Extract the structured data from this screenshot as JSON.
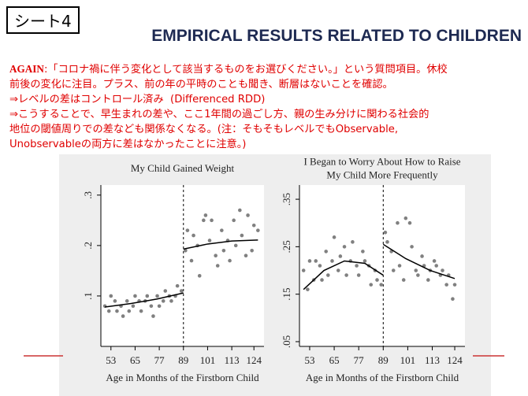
{
  "slide": {
    "badge": "シート4",
    "heading": "EMPIRICAL RESULTS RELATED TO CHILDREN",
    "lead": "AGAIN",
    "lines": [
      ":「コロナ禍に伴う変化として該当するものをお選びください。」という質問項目。休校",
      "前後の変化に注目。プラス、前の年の平時のことも聞き、断層はないことを確認。",
      "⇒レベルの差はコントロール済み  (Differenced RDD)",
      "⇒こうすることで、早生まれの差や、ここ1年間の過ごし方、親の生み分けに関わる社会的",
      "地位の閾値周りでの差なども関係なくなる。(注：そもそもレベルでもObservable,",
      "Unobservableの両方に差はなかったことに注意。)"
    ]
  },
  "chart_data": [
    {
      "type": "scatter",
      "title": [
        "My Child Gained Weight"
      ],
      "x_label": "Age in Months of the Firstborn Child",
      "xlim": [
        48,
        129
      ],
      "ylim": [
        0,
        0.32
      ],
      "xticks": [
        53,
        65,
        77,
        89,
        101,
        113,
        124
      ],
      "yticks": [
        {
          "value": 0.1,
          "label": ".1"
        },
        {
          "value": 0.2,
          "label": ".2"
        },
        {
          "value": 0.3,
          "label": ".3"
        }
      ],
      "cutoff": 89,
      "series": [
        {
          "mode": "markers",
          "color": "#808080",
          "x": [
            50,
            52,
            53,
            55,
            56,
            58,
            59,
            61,
            62,
            64,
            65,
            67,
            68,
            70,
            71,
            73,
            74,
            76,
            77,
            79,
            80,
            82,
            83,
            85,
            86,
            88,
            90,
            91,
            93,
            94,
            96,
            97,
            99,
            100,
            102,
            103,
            105,
            106,
            108,
            109,
            111,
            112,
            114,
            115,
            117,
            118,
            120,
            121,
            123,
            124,
            126
          ],
          "values": [
            0.08,
            0.07,
            0.1,
            0.09,
            0.07,
            0.08,
            0.06,
            0.09,
            0.07,
            0.08,
            0.1,
            0.09,
            0.07,
            0.09,
            0.1,
            0.08,
            0.06,
            0.1,
            0.08,
            0.09,
            0.11,
            0.1,
            0.09,
            0.1,
            0.12,
            0.11,
            0.19,
            0.23,
            0.17,
            0.22,
            0.2,
            0.14,
            0.25,
            0.26,
            0.21,
            0.25,
            0.18,
            0.16,
            0.23,
            0.19,
            0.21,
            0.17,
            0.25,
            0.2,
            0.27,
            0.22,
            0.18,
            0.26,
            0.19,
            0.24,
            0.23
          ]
        },
        {
          "mode": "line",
          "color": "#000000",
          "x": [
            50,
            63,
            76,
            89
          ],
          "values": [
            0.078,
            0.085,
            0.094,
            0.106
          ]
        },
        {
          "mode": "line",
          "color": "#000000",
          "x": [
            89,
            101,
            113,
            126
          ],
          "values": [
            0.193,
            0.203,
            0.209,
            0.211
          ]
        }
      ]
    },
    {
      "type": "scatter",
      "title": [
        "I Began to Worry About How to Raise",
        "My Child More Frequently"
      ],
      "x_label": "Age in Months of the Firstborn Child",
      "xlim": [
        48,
        129
      ],
      "ylim": [
        0.04,
        0.38
      ],
      "xticks": [
        53,
        65,
        77,
        89,
        101,
        113,
        124
      ],
      "yticks": [
        {
          "value": 0.05,
          "label": ".05"
        },
        {
          "value": 0.15,
          "label": ".15"
        },
        {
          "value": 0.25,
          "label": ".25"
        },
        {
          "value": 0.35,
          "label": ".35"
        }
      ],
      "cutoff": 89,
      "series": [
        {
          "mode": "markers",
          "color": "#808080",
          "x": [
            50,
            52,
            53,
            55,
            56,
            58,
            59,
            61,
            62,
            64,
            65,
            67,
            68,
            70,
            71,
            73,
            74,
            76,
            77,
            79,
            80,
            82,
            83,
            85,
            86,
            88,
            90,
            91,
            93,
            94,
            96,
            97,
            99,
            100,
            102,
            103,
            105,
            106,
            108,
            109,
            111,
            112,
            114,
            115,
            117,
            118,
            120,
            121,
            123,
            124
          ],
          "values": [
            0.2,
            0.16,
            0.22,
            0.18,
            0.22,
            0.21,
            0.18,
            0.24,
            0.19,
            0.22,
            0.27,
            0.2,
            0.23,
            0.25,
            0.19,
            0.22,
            0.26,
            0.21,
            0.19,
            0.24,
            0.22,
            0.21,
            0.17,
            0.2,
            0.18,
            0.17,
            0.28,
            0.26,
            0.24,
            0.2,
            0.3,
            0.21,
            0.18,
            0.31,
            0.3,
            0.25,
            0.2,
            0.19,
            0.23,
            0.21,
            0.18,
            0.2,
            0.22,
            0.21,
            0.19,
            0.2,
            0.17,
            0.19,
            0.14,
            0.17
          ]
        },
        {
          "mode": "line",
          "color": "#000000",
          "x": [
            50,
            60,
            70,
            80,
            89
          ],
          "values": [
            0.16,
            0.2,
            0.22,
            0.215,
            0.19
          ]
        },
        {
          "mode": "line",
          "color": "#000000",
          "x": [
            89,
            100,
            112,
            124
          ],
          "values": [
            0.255,
            0.225,
            0.2,
            0.183
          ]
        }
      ]
    }
  ]
}
